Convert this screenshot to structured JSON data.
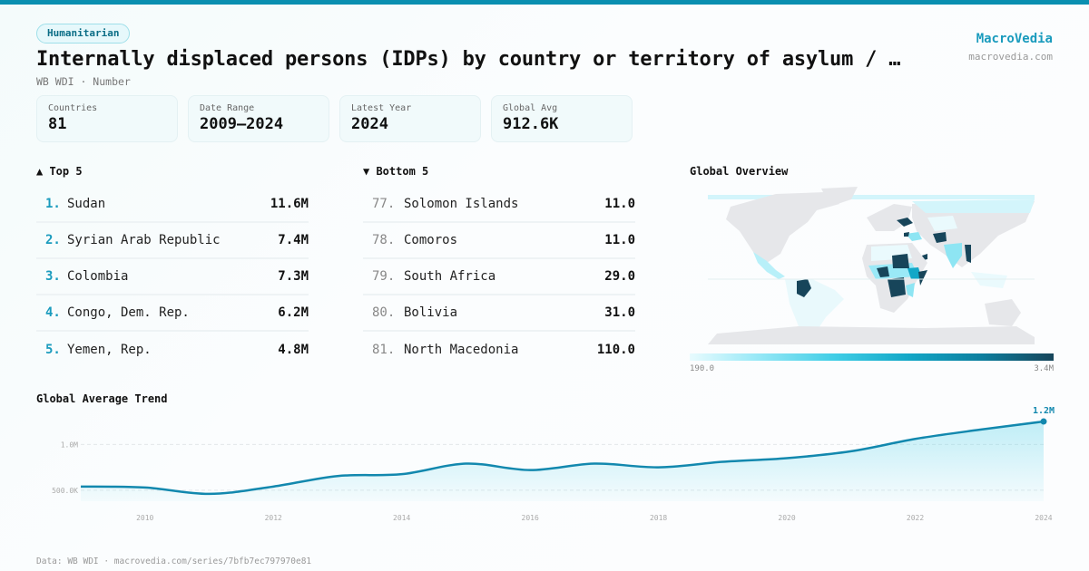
{
  "header": {
    "tag": "Humanitarian",
    "title": "Internally displaced persons (IDPs) by country or territory of asylum / …",
    "subtitle": "WB WDI · Number",
    "brand": "MacroVedia",
    "brand_url": "macrovedia.com"
  },
  "stats": [
    {
      "label": "Countries",
      "value": "81"
    },
    {
      "label": "Date Range",
      "value": "2009–2024"
    },
    {
      "label": "Latest Year",
      "value": "2024"
    },
    {
      "label": "Global Avg",
      "value": "912.6K"
    }
  ],
  "top5": {
    "heading": "▲ Top 5",
    "items": [
      {
        "rank": "1.",
        "name": "Sudan",
        "value": "11.6M"
      },
      {
        "rank": "2.",
        "name": "Syrian Arab Republic",
        "value": "7.4M"
      },
      {
        "rank": "3.",
        "name": "Colombia",
        "value": "7.3M"
      },
      {
        "rank": "4.",
        "name": "Congo, Dem. Rep.",
        "value": "6.2M"
      },
      {
        "rank": "5.",
        "name": "Yemen, Rep.",
        "value": "4.8M"
      }
    ]
  },
  "bottom5": {
    "heading": "▼ Bottom 5",
    "items": [
      {
        "rank": "77.",
        "name": "Solomon Islands",
        "value": "11.0"
      },
      {
        "rank": "78.",
        "name": "Comoros",
        "value": "11.0"
      },
      {
        "rank": "79.",
        "name": "South Africa",
        "value": "29.0"
      },
      {
        "rank": "80.",
        "name": "Bolivia",
        "value": "31.0"
      },
      {
        "rank": "81.",
        "name": "North Macedonia",
        "value": "110.0"
      }
    ]
  },
  "map": {
    "title": "Global Overview",
    "legend_min": "190.0",
    "legend_max": "3.4M",
    "colors": {
      "land": "#e6e7ea",
      "low": "#e8fbfe",
      "mid": "#7fe2f3",
      "high": "#13a7c7",
      "max": "#17455a"
    }
  },
  "trend": {
    "title": "Global Average Trend",
    "end_label": "1.2M"
  },
  "footer": "Data: WB WDI · macrovedia.com/series/7bfb7ec797970e81",
  "colors": {
    "accent": "#0a8fb0",
    "line": "#1288ae"
  },
  "chart_data": {
    "type": "area",
    "title": "Global Average Trend",
    "x": [
      2009,
      2010,
      2011,
      2012,
      2013,
      2014,
      2015,
      2016,
      2017,
      2018,
      2019,
      2020,
      2021,
      2022,
      2023,
      2024
    ],
    "values": [
      540000,
      530000,
      460000,
      540000,
      655000,
      675000,
      790000,
      720000,
      790000,
      750000,
      810000,
      850000,
      925000,
      1060000,
      1160000,
      1250000
    ],
    "x_ticks": [
      "2010",
      "2012",
      "2014",
      "2016",
      "2018",
      "2020",
      "2022",
      "2024"
    ],
    "y_ticks": [
      {
        "value": 500000,
        "label": "500.0K"
      },
      {
        "value": 1000000,
        "label": "1.0M"
      }
    ],
    "ylim": [
      380000,
      1300000
    ],
    "xlabel": "",
    "ylabel": "",
    "grid": true,
    "end_annotation": "1.2M"
  }
}
